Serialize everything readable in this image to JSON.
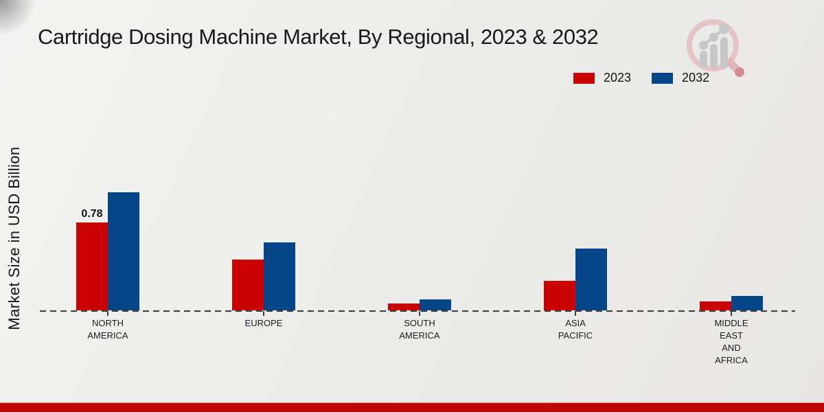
{
  "page": {
    "title": "Cartridge Dosing Machine Market, By Regional, 2023 & 2032",
    "ylabel": "Market Size in USD Billion"
  },
  "colors": {
    "series_2023": "#c90204",
    "series_2032": "#044687",
    "footer_band": "#c00505",
    "baseline": "#3b3b3b"
  },
  "logo": {
    "icon": "magnifier-bar-chart-logo"
  },
  "chart_data": {
    "type": "bar",
    "title": "Cartridge Dosing Machine Market, By Regional, 2023 & 2032",
    "xlabel": "",
    "ylabel": "Market Size in USD Billion",
    "categories": [
      "NORTH\nAMERICA",
      "EUROPE",
      "SOUTH\nAMERICA",
      "ASIA\nPACIFIC",
      "MIDDLE\nEAST\nAND\nAFRICA"
    ],
    "series": [
      {
        "name": "2023",
        "color": "#c90204",
        "values": [
          0.78,
          0.45,
          0.06,
          0.26,
          0.08
        ],
        "data_labels": [
          "0.78",
          "",
          "",
          "",
          ""
        ]
      },
      {
        "name": "2032",
        "color": "#044687",
        "values": [
          1.05,
          0.6,
          0.1,
          0.55,
          0.13
        ],
        "data_labels": [
          "",
          "",
          "",
          "",
          ""
        ]
      }
    ],
    "ylim": [
      0,
      1.2
    ],
    "grid": false,
    "y_axis_ticks_visible": false,
    "baseline_style": "dashed",
    "legend_position": "top-right"
  }
}
